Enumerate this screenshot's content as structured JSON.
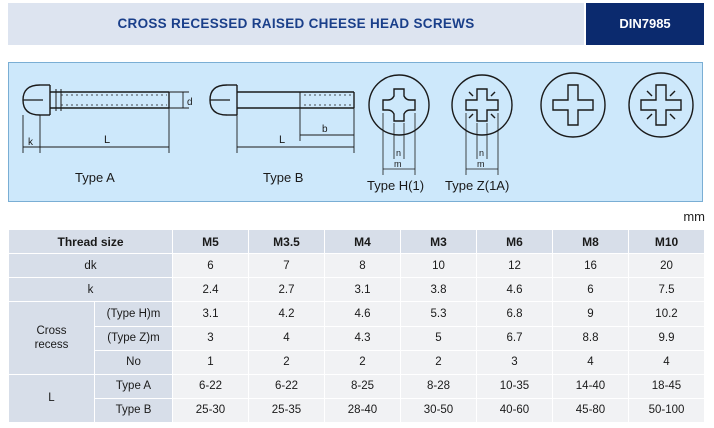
{
  "header": {
    "title": "CROSS RECESSED RAISED CHEESE HEAD SCREWS",
    "standard": "DIN7985"
  },
  "diagram": {
    "labels": {
      "d": "d",
      "k": "k",
      "L": "L",
      "b": "b",
      "n": "n",
      "m": "m",
      "type_a": "Type A",
      "type_b": "Type B",
      "type_h": "Type H(1)",
      "type_z": "Type Z(1A)"
    }
  },
  "unit": "mm",
  "table": {
    "header_label": "Thread size",
    "sizes": [
      "M5",
      "M3.5",
      "M4",
      "M3",
      "M6",
      "M8",
      "M10"
    ],
    "rows": {
      "dk": {
        "label": "dk",
        "values": [
          "6",
          "7",
          "8",
          "10",
          "12",
          "16",
          "20"
        ]
      },
      "k": {
        "label": "k",
        "values": [
          "2.4",
          "2.7",
          "3.1",
          "3.8",
          "4.6",
          "6",
          "7.5"
        ]
      },
      "cross_recess": {
        "label_line1": "Cross",
        "label_line2": "recess",
        "type_h": {
          "label": "(Type H)m",
          "values": [
            "3.1",
            "4.2",
            "4.6",
            "5.3",
            "6.8",
            "9",
            "10.2"
          ]
        },
        "type_z": {
          "label": "(Type Z)m",
          "values": [
            "3",
            "4",
            "4.3",
            "5",
            "6.7",
            "8.8",
            "9.9"
          ]
        },
        "no": {
          "label": "No",
          "values": [
            "1",
            "2",
            "2",
            "2",
            "3",
            "4",
            "4"
          ]
        }
      },
      "length": {
        "label": "L",
        "type_a": {
          "label": "Type A",
          "values": [
            "6-22",
            "6-22",
            "8-25",
            "8-28",
            "10-35",
            "14-40",
            "18-45"
          ]
        },
        "type_b": {
          "label": "Type B",
          "values": [
            "25-30",
            "25-35",
            "28-40",
            "30-50",
            "40-60",
            "45-80",
            "50-100"
          ]
        }
      }
    }
  }
}
